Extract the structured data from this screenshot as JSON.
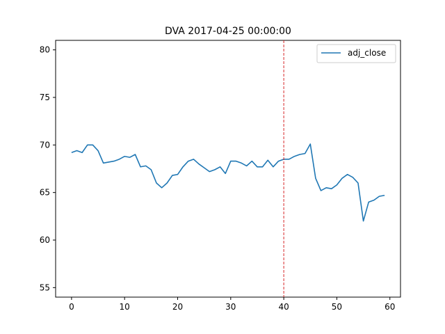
{
  "chart_data": {
    "type": "line",
    "title": "DVA 2017-04-25 00:00:00",
    "xlabel": "",
    "ylabel": "",
    "xlim": [
      -3,
      62
    ],
    "ylim": [
      54,
      81
    ],
    "xticks": [
      0,
      10,
      20,
      30,
      40,
      50,
      60
    ],
    "yticks": [
      55,
      60,
      65,
      70,
      75,
      80
    ],
    "grid": false,
    "legend_position": "top-right",
    "vline": {
      "x": 40,
      "color": "#d62728",
      "style": "dashed"
    },
    "series": [
      {
        "name": "adj_close",
        "color": "#1f77b4",
        "x": [
          0,
          1,
          2,
          3,
          4,
          5,
          6,
          7,
          8,
          9,
          10,
          11,
          12,
          13,
          14,
          15,
          16,
          17,
          18,
          19,
          20,
          21,
          22,
          23,
          24,
          25,
          26,
          27,
          28,
          29,
          30,
          31,
          32,
          33,
          34,
          35,
          36,
          37,
          38,
          39,
          40,
          41,
          42,
          43,
          44,
          45,
          46,
          47,
          48,
          49,
          50,
          51,
          52,
          53,
          54,
          55,
          56,
          57,
          58,
          59
        ],
        "values": [
          69.2,
          69.4,
          69.2,
          70.0,
          70.0,
          69.4,
          68.1,
          68.2,
          68.3,
          68.5,
          68.8,
          68.7,
          69.0,
          67.7,
          67.8,
          67.4,
          66.0,
          65.5,
          66.0,
          66.8,
          66.9,
          67.7,
          68.3,
          68.5,
          68.0,
          67.6,
          67.2,
          67.4,
          67.7,
          67.0,
          68.3,
          68.3,
          68.1,
          67.8,
          68.3,
          67.7,
          67.7,
          68.4,
          67.7,
          68.3,
          68.5,
          68.5,
          68.8,
          69.0,
          69.1,
          70.1,
          66.5,
          65.2,
          65.5,
          65.4,
          65.8,
          66.5,
          66.9,
          66.6,
          66.0,
          62.0,
          64.0,
          64.2,
          64.6,
          64.7
        ]
      }
    ]
  }
}
